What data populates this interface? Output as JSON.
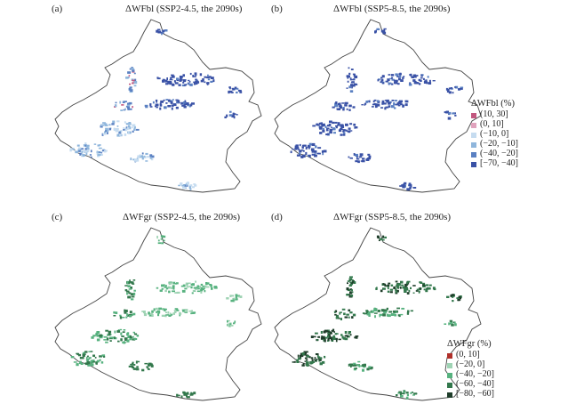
{
  "panels": [
    {
      "letter": "(a)",
      "title": "ΔWFbl (SSP2-4.5, the 2090s)",
      "variable": "bl",
      "scenario": "ssp245"
    },
    {
      "letter": "(b)",
      "title": "ΔWFbl (SSP5-8.5, the 2090s)",
      "variable": "bl",
      "scenario": "ssp585"
    },
    {
      "letter": "(c)",
      "title": "ΔWFgr (SSP2-4.5, the 2090s)",
      "variable": "gr",
      "scenario": "ssp245"
    },
    {
      "letter": "(d)",
      "title": "ΔWFgr (SSP5-8.5, the 2090s)",
      "variable": "gr",
      "scenario": "ssp585"
    }
  ],
  "legend_bl": {
    "title": "ΔWFbl (%)",
    "items": [
      {
        "label": "(10, 30]",
        "color": "#c2577f"
      },
      {
        "label": "(0, 10]",
        "color": "#e0a3bd"
      },
      {
        "label": "(−10, 0]",
        "color": "#c6dcf0"
      },
      {
        "label": "(−20, −10]",
        "color": "#8fb6dc"
      },
      {
        "label": "(−40, −20]",
        "color": "#5a80c2"
      },
      {
        "label": "[−70, −40]",
        "color": "#3a52a6"
      }
    ]
  },
  "legend_gr": {
    "title": "ΔWFgr (%)",
    "items": [
      {
        "label": "(0, 10]",
        "color": "#b0302a"
      },
      {
        "label": "(−20, 0]",
        "color": "#9fd3b4"
      },
      {
        "label": "(−40, −20]",
        "color": "#57b27f"
      },
      {
        "label": "(−60, −40]",
        "color": "#33784c"
      },
      {
        "label": "[−80, −60]",
        "color": "#1f3d2a"
      }
    ]
  }
}
